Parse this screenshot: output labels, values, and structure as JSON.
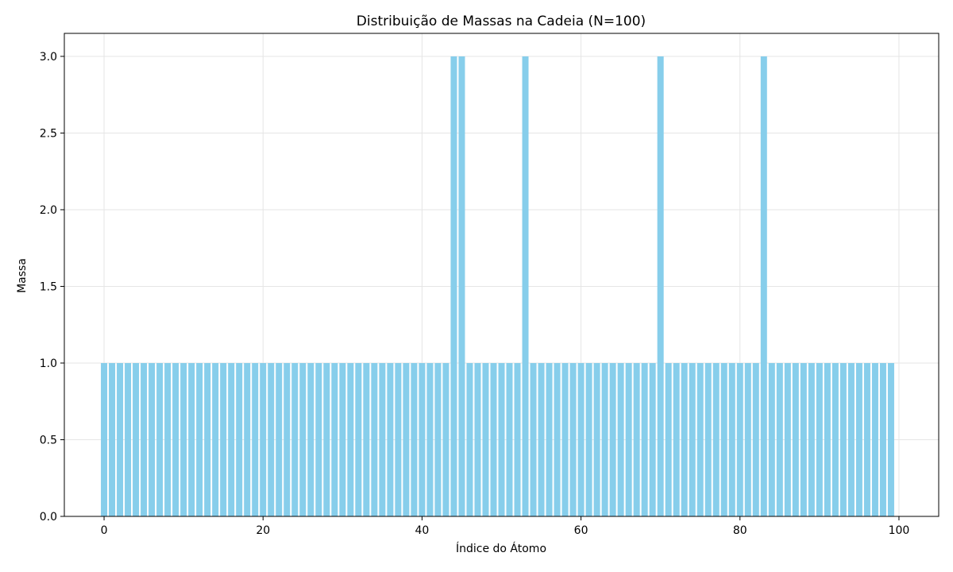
{
  "chart_data": {
    "type": "bar",
    "title": "Distribuição de Massas na Cadeia (N=100)",
    "xlabel": "Índice do Átomo",
    "ylabel": "Massa",
    "xlim": [
      -5,
      105
    ],
    "ylim": [
      0,
      3.15
    ],
    "xticks": [
      0,
      20,
      40,
      60,
      80,
      100
    ],
    "xtick_labels": [
      "0",
      "20",
      "40",
      "60",
      "80",
      "100"
    ],
    "yticks": [
      0,
      0.5,
      1,
      1.5,
      2,
      2.5,
      3
    ],
    "ytick_labels": [
      "0.0",
      "0.5",
      "1.0",
      "1.5",
      "2.0",
      "2.5",
      "3.0"
    ],
    "grid": true,
    "bar_color": "#87ceeb",
    "grid_color": "#e5e5e5",
    "x": [
      0,
      1,
      2,
      3,
      4,
      5,
      6,
      7,
      8,
      9,
      10,
      11,
      12,
      13,
      14,
      15,
      16,
      17,
      18,
      19,
      20,
      21,
      22,
      23,
      24,
      25,
      26,
      27,
      28,
      29,
      30,
      31,
      32,
      33,
      34,
      35,
      36,
      37,
      38,
      39,
      40,
      41,
      42,
      43,
      44,
      45,
      46,
      47,
      48,
      49,
      50,
      51,
      52,
      53,
      54,
      55,
      56,
      57,
      58,
      59,
      60,
      61,
      62,
      63,
      64,
      65,
      66,
      67,
      68,
      69,
      70,
      71,
      72,
      73,
      74,
      75,
      76,
      77,
      78,
      79,
      80,
      81,
      82,
      83,
      84,
      85,
      86,
      87,
      88,
      89,
      90,
      91,
      92,
      93,
      94,
      95,
      96,
      97,
      98,
      99
    ],
    "values": [
      1,
      1,
      1,
      1,
      1,
      1,
      1,
      1,
      1,
      1,
      1,
      1,
      1,
      1,
      1,
      1,
      1,
      1,
      1,
      1,
      1,
      1,
      1,
      1,
      1,
      1,
      1,
      1,
      1,
      1,
      1,
      1,
      1,
      1,
      1,
      1,
      1,
      1,
      1,
      1,
      1,
      1,
      1,
      1,
      3,
      3,
      1,
      1,
      1,
      1,
      1,
      1,
      1,
      3,
      1,
      1,
      1,
      1,
      1,
      1,
      1,
      1,
      1,
      1,
      1,
      1,
      1,
      1,
      1,
      1,
      3,
      1,
      1,
      1,
      1,
      1,
      1,
      1,
      1,
      1,
      1,
      1,
      1,
      3,
      1,
      1,
      1,
      1,
      1,
      1,
      1,
      1,
      1,
      1,
      1,
      1,
      1,
      1,
      1,
      1
    ]
  }
}
